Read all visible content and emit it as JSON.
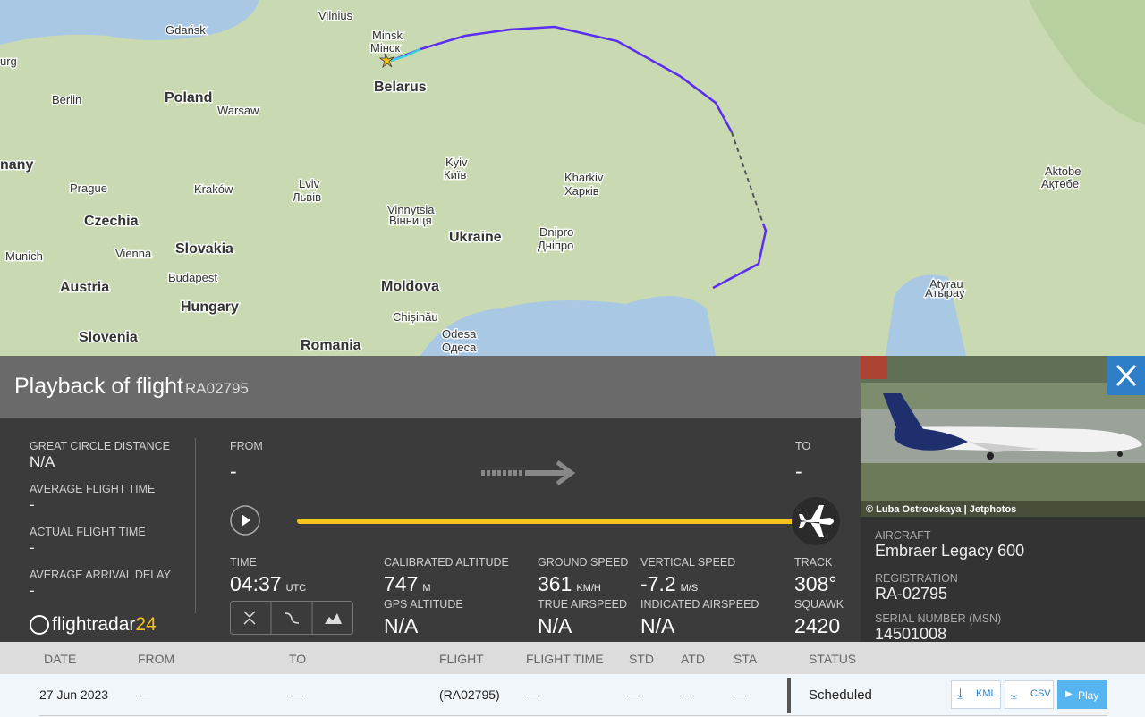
{
  "map": {
    "labels": [
      {
        "text": "Gdańsk"
      },
      {
        "text": "Vilnius"
      },
      {
        "text": "Minsk"
      },
      {
        "text": "Мінск"
      },
      {
        "text": "urg"
      },
      {
        "text": "Berlin"
      },
      {
        "text": "Poland"
      },
      {
        "text": "Warsaw"
      },
      {
        "text": "Belarus"
      },
      {
        "text": "nany"
      },
      {
        "text": "Prague"
      },
      {
        "text": "Kraków"
      },
      {
        "text": "Lviv"
      },
      {
        "text": "Львів"
      },
      {
        "text": "Kyiv"
      },
      {
        "text": "Київ"
      },
      {
        "text": "Kharkiv"
      },
      {
        "text": "Харків"
      },
      {
        "text": "Czechia"
      },
      {
        "text": "Vinnytsia"
      },
      {
        "text": "Вінниця"
      },
      {
        "text": "Ukraine"
      },
      {
        "text": "Dnipro"
      },
      {
        "text": "Дніпро"
      },
      {
        "text": "Slovakia"
      },
      {
        "text": "Munich"
      },
      {
        "text": "Vienna"
      },
      {
        "text": "Budapest"
      },
      {
        "text": "Austria"
      },
      {
        "text": "Hungary"
      },
      {
        "text": "Moldova"
      },
      {
        "text": "Chișinău"
      },
      {
        "text": "Odesa"
      },
      {
        "text": "Одеса"
      },
      {
        "text": "Slovenia"
      },
      {
        "text": "Romania"
      },
      {
        "text": "Aktobe"
      },
      {
        "text": "Ақтөбе"
      },
      {
        "text": "Atyrau"
      },
      {
        "text": "Атырау"
      }
    ]
  },
  "panel": {
    "title": "Playback of flight",
    "flight": "RA02795",
    "stats": [
      {
        "label": "GREAT CIRCLE DISTANCE",
        "value": "N/A"
      },
      {
        "label": "AVERAGE FLIGHT TIME",
        "value": "-"
      },
      {
        "label": "ACTUAL FLIGHT TIME",
        "value": "-"
      },
      {
        "label": "AVERAGE ARRIVAL DELAY",
        "value": "-"
      }
    ],
    "from": {
      "label": "FROM",
      "value": "-"
    },
    "to": {
      "label": "TO",
      "value": "-"
    },
    "metrics": [
      {
        "label": "TIME",
        "value": "04:37",
        "unit": "UTC"
      },
      {
        "label": "CALIBRATED ALTITUDE",
        "value": "747",
        "unit": "M"
      },
      {
        "label": "GROUND SPEED",
        "value": "361",
        "unit": "KM/H"
      },
      {
        "label": "VERTICAL SPEED",
        "value": "-7.2",
        "unit": "M/S"
      },
      {
        "label": "TRACK",
        "value": "308°"
      },
      {
        "label": "GPS ALTITUDE",
        "value": "N/A"
      },
      {
        "label": "TRUE AIRSPEED",
        "value": "N/A"
      },
      {
        "label": "INDICATED AIRSPEED",
        "value": "N/A"
      },
      {
        "label": "SQUAWK",
        "value": "2420"
      }
    ],
    "logo": {
      "name": "flightradar",
      "suffix": "24"
    }
  },
  "aircraft": {
    "photo_credit": "© Luba Ostrovskaya | Jetphotos",
    "fields": [
      {
        "label": "AIRCRAFT",
        "value": "Embraer Legacy 600"
      },
      {
        "label": "REGISTRATION",
        "value": "RA-02795"
      },
      {
        "label": "SERIAL NUMBER (MSN)",
        "value": "14501008"
      }
    ]
  },
  "table": {
    "headers": [
      "DATE",
      "FROM",
      "TO",
      "FLIGHT",
      "FLIGHT TIME",
      "STD",
      "ATD",
      "STA",
      "STATUS"
    ],
    "rows": [
      [
        "27 Jun 2023",
        "—",
        "—",
        "(RA02795)",
        "—",
        "—",
        "—",
        "—",
        "Scheduled"
      ]
    ],
    "buttons": [
      "KML",
      "CSV",
      "Play"
    ]
  }
}
